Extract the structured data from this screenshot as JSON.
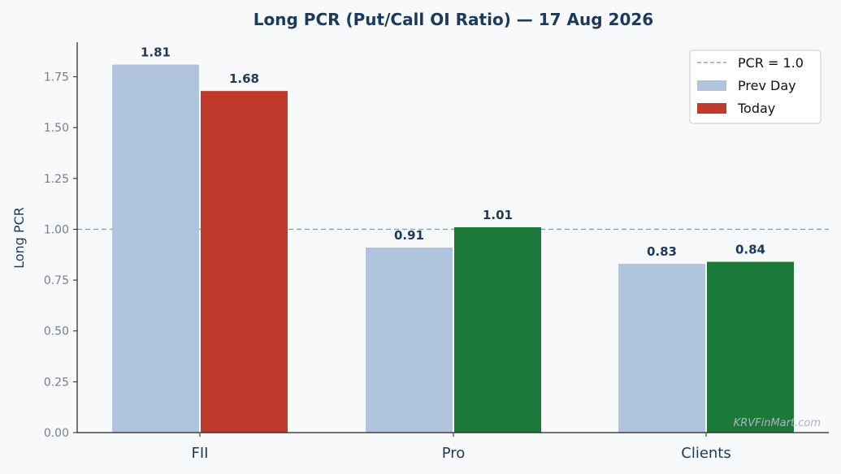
{
  "chart_data": {
    "type": "bar",
    "title": "Long PCR (Put/Call OI Ratio) — 17 Aug 2026",
    "ylabel": "Long PCR",
    "xlabel": "",
    "categories": [
      "FII",
      "Pro",
      "Clients"
    ],
    "series": [
      {
        "name": "Prev Day",
        "values": [
          1.81,
          0.91,
          0.83
        ],
        "colors": [
          "#b0c4de",
          "#b0c4de",
          "#b0c4de"
        ]
      },
      {
        "name": "Today",
        "values": [
          1.68,
          1.01,
          0.84
        ],
        "colors": [
          "#c0392b",
          "#1b7a3a",
          "#1b7a3a"
        ]
      }
    ],
    "value_labels": [
      [
        "1.81",
        "0.91",
        "0.83"
      ],
      [
        "1.68",
        "1.01",
        "0.84"
      ]
    ],
    "ylim": [
      0,
      1.92
    ],
    "yticks": [
      "0.00",
      "0.25",
      "0.50",
      "0.75",
      "1.00",
      "1.25",
      "1.50",
      "1.75"
    ],
    "reference_line": {
      "value": 1.0,
      "label": "PCR = 1.0",
      "color": "#8a96aa"
    },
    "legend": {
      "placement": "top-right",
      "entries": [
        {
          "label": "PCR = 1.0",
          "kind": "dashed-line",
          "color": "#8a96aa"
        },
        {
          "label": "Prev Day",
          "kind": "patch",
          "color": "#b0c4de"
        },
        {
          "label": "Today",
          "kind": "patch",
          "color": "#c0392b"
        }
      ]
    },
    "grid": false,
    "watermark": "KRVFinMart.com"
  }
}
